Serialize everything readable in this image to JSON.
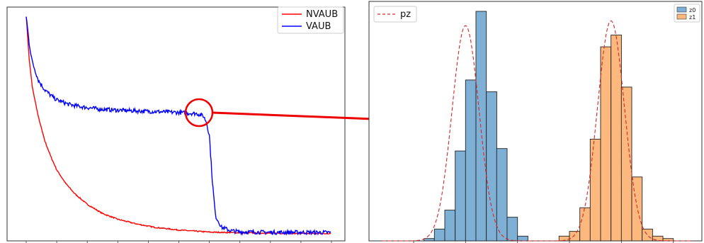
{
  "chart_data": [
    {
      "type": "line",
      "title": "",
      "xlabel": "",
      "ylabel": "",
      "legend_position": "top-right",
      "grid": false,
      "xlim": [
        0,
        100
      ],
      "ylim": [
        0,
        100
      ],
      "series": [
        {
          "name": "NVAUB",
          "color": "#ff0000",
          "x": [
            0,
            1,
            2,
            4,
            6,
            8,
            10,
            13,
            16,
            20,
            25,
            30,
            36,
            42,
            50,
            60,
            70,
            80,
            90,
            100
          ],
          "y": [
            97,
            78,
            66,
            53,
            43,
            36,
            30,
            24,
            19.5,
            15,
            11,
            8.5,
            6.5,
            5,
            3.8,
            2.9,
            2.6,
            2.4,
            2.3,
            2.2
          ]
        },
        {
          "name": "VAUB",
          "color": "#0000ff",
          "x": [
            0,
            1,
            2,
            4,
            6,
            8,
            10,
            14,
            18,
            24,
            30,
            40,
            50,
            56,
            58,
            59,
            60,
            61,
            62,
            64,
            67,
            70,
            80,
            90,
            100
          ],
          "y": [
            97,
            85,
            77,
            69,
            65,
            62.5,
            60.5,
            58.5,
            57.5,
            56.5,
            56,
            55.5,
            55,
            54.5,
            53.5,
            51,
            45,
            25,
            10,
            5,
            3.5,
            3,
            2.8,
            2.8,
            2.7
          ]
        }
      ],
      "annotation": {
        "type": "circle",
        "at_x": 58.5,
        "at_y": 54,
        "arrow_color": "#ee0000",
        "target": "right-panel"
      }
    },
    {
      "type": "bar",
      "title": "",
      "xlabel": "",
      "ylabel": "",
      "grid": false,
      "xlim": [
        -4,
        11
      ],
      "ylim": [
        0,
        1
      ],
      "legends": [
        {
          "position": "top-left",
          "entries": [
            "pz"
          ]
        },
        {
          "position": "top-right",
          "entries": [
            "z0",
            "z1"
          ]
        }
      ],
      "bin_width": 0.5,
      "series": [
        {
          "name": "z0",
          "color": "#7eb0d5",
          "bin_starts": [
            -2,
            -1.5,
            -1,
            -0.5,
            0,
            0.5,
            1,
            1.5,
            2,
            2.5
          ],
          "values": [
            0.01,
            0.05,
            0.13,
            0.38,
            0.68,
            0.97,
            0.63,
            0.39,
            0.1,
            0.02
          ]
        },
        {
          "name": "z1",
          "color": "#fdb87d",
          "bin_starts": [
            4.5,
            5,
            5.5,
            6,
            6.5,
            7,
            7.5,
            8,
            8.5,
            9,
            9.5
          ],
          "values": [
            0.02,
            0.04,
            0.14,
            0.43,
            0.82,
            0.87,
            0.65,
            0.27,
            0.05,
            0.02,
            0.01
          ]
        },
        {
          "name": "pz",
          "style": "dashed",
          "color": "#d62728",
          "kind": "bimodal-gaussian-curve",
          "peaks": [
            {
              "mean": 0,
              "sd": 0.65,
              "height": 0.91
            },
            {
              "mean": 7,
              "sd": 0.65,
              "height": 0.93
            }
          ]
        }
      ]
    }
  ]
}
